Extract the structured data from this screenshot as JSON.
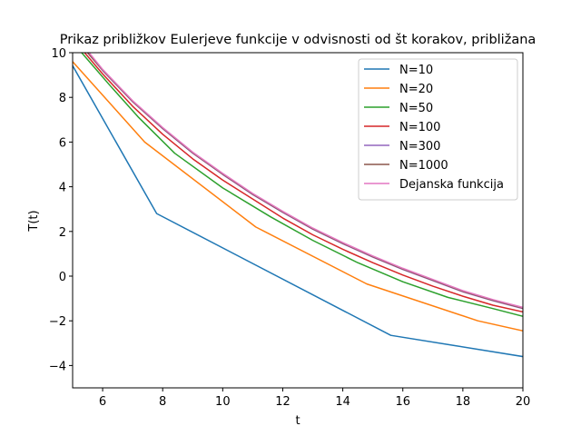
{
  "chart_data": {
    "type": "line",
    "title": "Prikaz približkov Eulerjeve funkcije v odvisnosti od št korakov, približana",
    "xlabel": "t",
    "ylabel": "T(t)",
    "xlim": [
      5,
      20
    ],
    "ylim": [
      -5,
      10
    ],
    "xticks": [
      6,
      8,
      10,
      12,
      14,
      16,
      18,
      20
    ],
    "yticks": [
      -4,
      -2,
      0,
      2,
      4,
      6,
      8,
      10
    ],
    "grid": false,
    "legend_position": "top-right",
    "series": [
      {
        "name": "N=10",
        "color": "#1f77b4",
        "x": [
          4.5,
          7.8,
          15.6,
          20
        ],
        "y": [
          10.6,
          2.8,
          -2.65,
          -3.6
        ]
      },
      {
        "name": "N=20",
        "color": "#ff7f0e",
        "x": [
          5,
          7.4,
          11.1,
          14.8,
          18.5,
          20
        ],
        "y": [
          9.6,
          6.0,
          2.2,
          -0.35,
          -2.0,
          -2.45
        ]
      },
      {
        "name": "N=50",
        "color": "#2ca02c",
        "x": [
          5.3,
          6.2,
          7.2,
          8.4,
          10.0,
          11.6,
          13.0,
          14.5,
          16.0,
          17.5,
          19.0,
          20.0
        ],
        "y": [
          10.0,
          8.6,
          7.1,
          5.5,
          3.95,
          2.65,
          1.6,
          0.6,
          -0.25,
          -0.95,
          -1.45,
          -1.8
        ]
      },
      {
        "name": "N=100",
        "color": "#d62728",
        "x": [
          5.4,
          6.0,
          7.0,
          8.0,
          9.0,
          10.0,
          11.0,
          12.0,
          13.0,
          14.0,
          15.0,
          16.0,
          17.0,
          18.0,
          19.0,
          20.0
        ],
        "y": [
          10.0,
          9.05,
          7.6,
          6.35,
          5.25,
          4.3,
          3.45,
          2.6,
          1.85,
          1.2,
          0.6,
          0.05,
          -0.45,
          -0.9,
          -1.3,
          -1.6
        ]
      },
      {
        "name": "N=300",
        "color": "#9467bd",
        "x": [
          5.5,
          6.0,
          7.0,
          8.0,
          9.0,
          10.0,
          11.0,
          12.0,
          13.0,
          14.0,
          15.0,
          16.0,
          17.0,
          18.0,
          19.0,
          20.0
        ],
        "y": [
          10.0,
          9.2,
          7.8,
          6.6,
          5.5,
          4.55,
          3.65,
          2.85,
          2.1,
          1.45,
          0.85,
          0.3,
          -0.2,
          -0.7,
          -1.1,
          -1.45
        ]
      },
      {
        "name": "N=1000",
        "color": "#8c564b",
        "x": [
          5.5,
          6.0,
          7.0,
          8.0,
          9.0,
          10.0,
          11.0,
          12.0,
          13.0,
          14.0,
          15.0,
          16.0,
          17.0,
          18.0,
          19.0,
          20.0
        ],
        "y": [
          10.0,
          9.22,
          7.82,
          6.62,
          5.52,
          4.57,
          3.67,
          2.87,
          2.12,
          1.47,
          0.87,
          0.32,
          -0.18,
          -0.68,
          -1.08,
          -1.43
        ]
      },
      {
        "name": "Dejanska funkcija",
        "color": "#e377c2",
        "x": [
          5.55,
          6.0,
          7.0,
          8.0,
          9.0,
          10.0,
          11.0,
          12.0,
          13.0,
          14.0,
          15.0,
          16.0,
          17.0,
          18.0,
          19.0,
          20.0
        ],
        "y": [
          10.0,
          9.25,
          7.85,
          6.65,
          5.55,
          4.6,
          3.7,
          2.9,
          2.15,
          1.5,
          0.9,
          0.35,
          -0.15,
          -0.65,
          -1.05,
          -1.4
        ]
      }
    ]
  }
}
